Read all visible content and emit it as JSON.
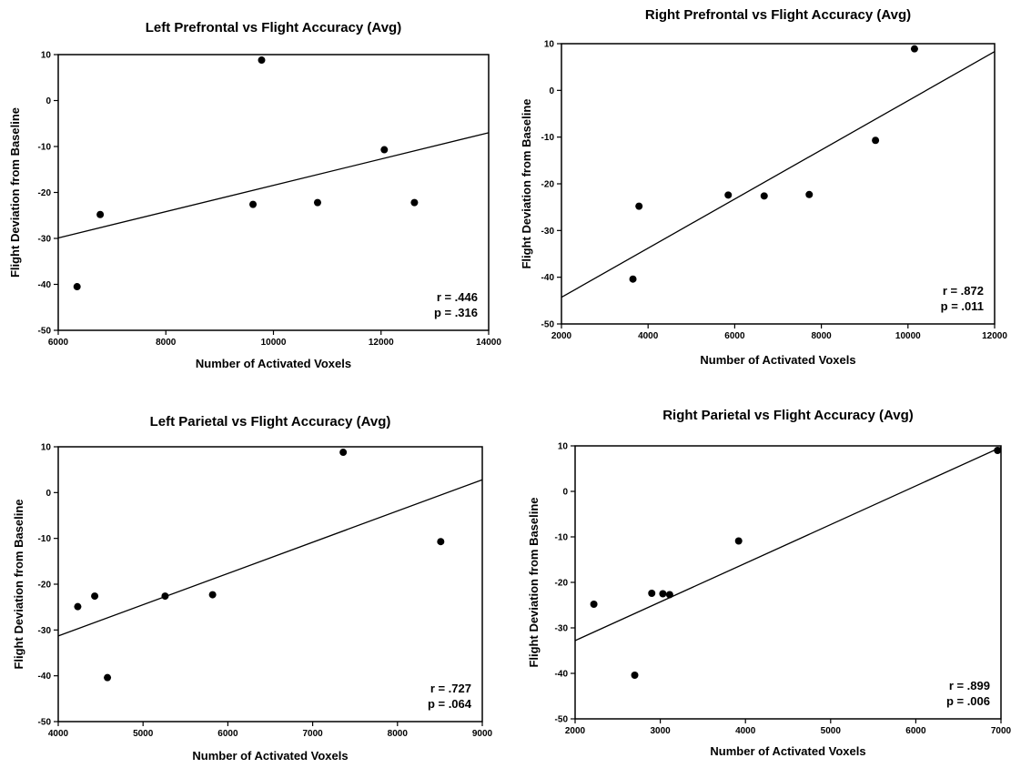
{
  "chart_data": [
    {
      "type": "scatter",
      "title": "Left Prefrontal vs Flight Accuracy (Avg)",
      "xlabel": "Number of Activated Voxels",
      "ylabel": "Flight Deviation from Baseline",
      "xlim": [
        6000,
        14000
      ],
      "ylim": [
        -50,
        10
      ],
      "xticks": [
        "6000",
        "8000",
        "10000",
        "12000",
        "14000"
      ],
      "yticks": [
        "10",
        "0",
        "-10",
        "-20",
        "-30",
        "-40",
        "-50"
      ],
      "grid": false,
      "points": [
        {
          "x": 6350,
          "y": -40.5
        },
        {
          "x": 6780,
          "y": -24.8
        },
        {
          "x": 9620,
          "y": -22.6
        },
        {
          "x": 9780,
          "y": 8.8
        },
        {
          "x": 10820,
          "y": -22.2
        },
        {
          "x": 12060,
          "y": -10.7
        },
        {
          "x": 12620,
          "y": -22.2
        }
      ],
      "fit_line": {
        "x": [
          6000,
          14000
        ],
        "y": [
          -29.9,
          -7.0
        ]
      },
      "stats": {
        "r": "r  = .446",
        "p": "p = .316"
      }
    },
    {
      "type": "scatter",
      "title": "Right Prefrontal vs Flight Accuracy (Avg)",
      "xlabel": "Number of Activated Voxels",
      "ylabel": "Flight Deviation from Baseline",
      "xlim": [
        2000,
        12000
      ],
      "ylim": [
        -50,
        10
      ],
      "xticks": [
        "2000",
        "4000",
        "6000",
        "8000",
        "10000",
        "12000"
      ],
      "yticks": [
        "10",
        "0",
        "-10",
        "-20",
        "-30",
        "-40",
        "-50"
      ],
      "grid": false,
      "points": [
        {
          "x": 3650,
          "y": -40.4
        },
        {
          "x": 3790,
          "y": -24.8
        },
        {
          "x": 5850,
          "y": -22.4
        },
        {
          "x": 6680,
          "y": -22.6
        },
        {
          "x": 7720,
          "y": -22.3
        },
        {
          "x": 9250,
          "y": -10.7
        },
        {
          "x": 10150,
          "y": 8.9
        }
      ],
      "fit_line": {
        "x": [
          2000,
          12000
        ],
        "y": [
          -44.3,
          8.3
        ]
      },
      "stats": {
        "r": "r  = .872",
        "p": "p = .011"
      }
    },
    {
      "type": "scatter",
      "title": "Left Parietal vs Flight Accuracy (Avg)",
      "xlabel": "Number of Activated Voxels",
      "ylabel": "Flight Deviation from Baseline",
      "xlim": [
        4000,
        9000
      ],
      "ylim": [
        -50,
        10
      ],
      "xticks": [
        "4000",
        "5000",
        "6000",
        "7000",
        "8000",
        "9000"
      ],
      "yticks": [
        "10",
        "0",
        "-10",
        "-20",
        "-30",
        "-40",
        "-50"
      ],
      "grid": false,
      "points": [
        {
          "x": 4230,
          "y": -24.9
        },
        {
          "x": 4430,
          "y": -22.6
        },
        {
          "x": 4580,
          "y": -40.4
        },
        {
          "x": 5260,
          "y": -22.6
        },
        {
          "x": 5820,
          "y": -22.3
        },
        {
          "x": 7360,
          "y": 8.8
        },
        {
          "x": 8510,
          "y": -10.7
        }
      ],
      "fit_line": {
        "x": [
          4000,
          9000
        ],
        "y": [
          -31.3,
          2.8
        ]
      },
      "stats": {
        "r": "r  = .727",
        "p": "p = .064"
      }
    },
    {
      "type": "scatter",
      "title": "Right Parietal vs Flight Accuracy (Avg)",
      "xlabel": "Number of Activated Voxels",
      "ylabel": "Flight Deviation from Baseline",
      "xlim": [
        2000,
        7000
      ],
      "ylim": [
        -50,
        10
      ],
      "xticks": [
        "2000",
        "3000",
        "4000",
        "5000",
        "6000",
        "7000"
      ],
      "yticks": [
        "10",
        "0",
        "-10",
        "-20",
        "-30",
        "-40",
        "-50"
      ],
      "grid": false,
      "points": [
        {
          "x": 2220,
          "y": -24.8
        },
        {
          "x": 2700,
          "y": -40.4
        },
        {
          "x": 2900,
          "y": -22.4
        },
        {
          "x": 3030,
          "y": -22.5
        },
        {
          "x": 3110,
          "y": -22.7
        },
        {
          "x": 3920,
          "y": -10.9
        },
        {
          "x": 6960,
          "y": 9.0
        }
      ],
      "fit_line": {
        "x": [
          2000,
          7000
        ],
        "y": [
          -32.8,
          9.7
        ]
      },
      "stats": {
        "r": "r  = .899",
        "p": "p = .006"
      }
    }
  ]
}
